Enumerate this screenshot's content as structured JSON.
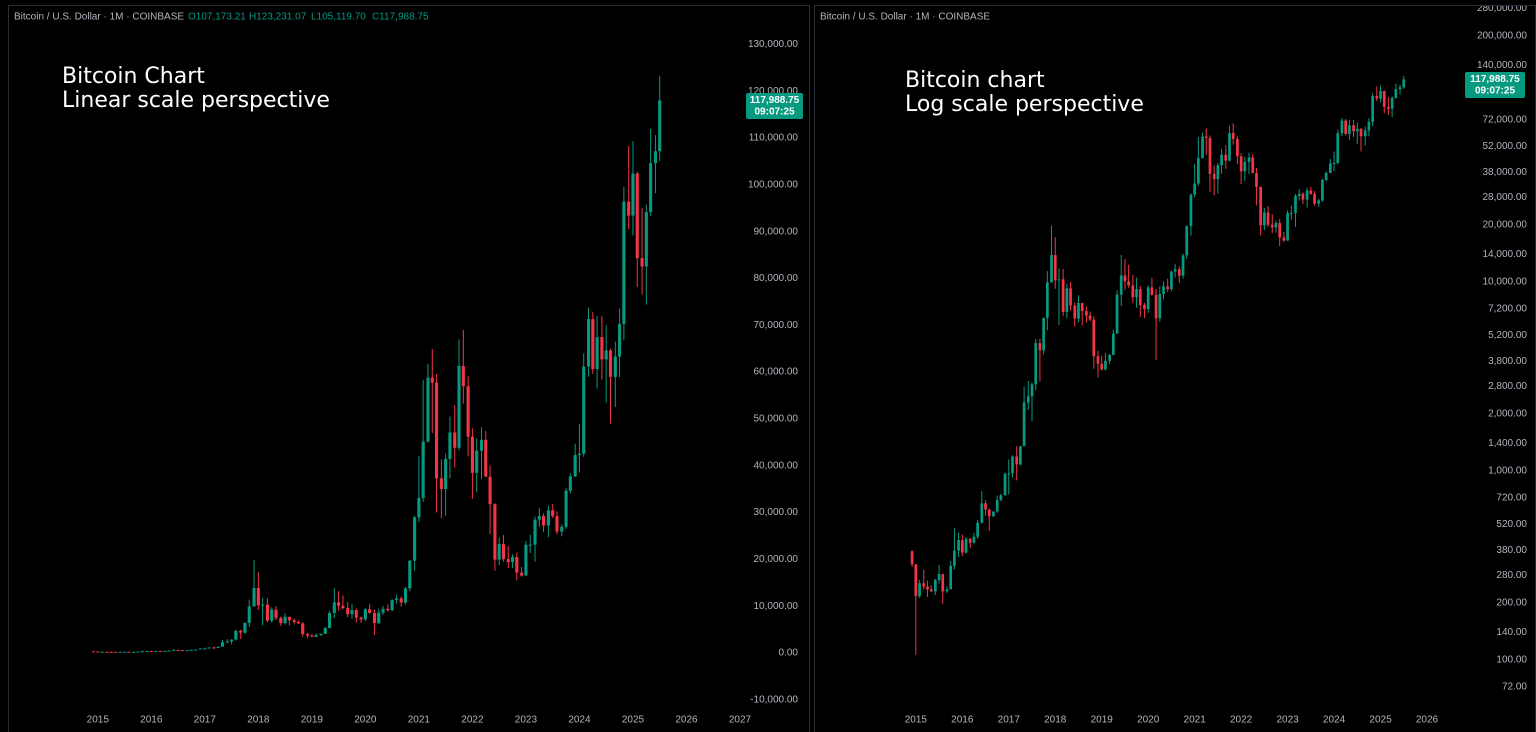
{
  "chart_data": [
    {
      "type": "candlestick",
      "header": "Bitcoin / U.S. Dollar · 1M · COINBASE",
      "ohlc_labels": [
        "O107,173.21",
        "H123,231.07",
        "L105,119.70",
        "C117,988.75"
      ],
      "annotations": [
        "Bitcoin Chart",
        "Linear scale perspective"
      ],
      "last_price_label": "117,988.75",
      "countdown": "09:07:25",
      "up_color": "#089981",
      "down_color": "#f23645",
      "log_scale": false,
      "xlim": [
        2013.36,
        2027.0
      ],
      "xticks": [
        2015,
        2016,
        2017,
        2018,
        2019,
        2020,
        2021,
        2022,
        2023,
        2024,
        2025,
        2026,
        2027
      ],
      "ylim": [
        -12600,
        132000
      ],
      "yticks": [
        {
          "value": 130000,
          "label": "130,000.00"
        },
        {
          "value": 120000,
          "label": "120,000.00"
        },
        {
          "value": 110000,
          "label": "110,000.00"
        },
        {
          "value": 100000,
          "label": "100,000.00"
        },
        {
          "value": 90000,
          "label": "90,000.00"
        },
        {
          "value": 80000,
          "label": "80,000.00"
        },
        {
          "value": 70000,
          "label": "70,000.00"
        },
        {
          "value": 60000,
          "label": "60,000.00"
        },
        {
          "value": 50000,
          "label": "50,000.00"
        },
        {
          "value": 40000,
          "label": "40,000.00"
        },
        {
          "value": 30000,
          "label": "30,000.00"
        },
        {
          "value": 20000,
          "label": "20,000.00"
        },
        {
          "value": 10000,
          "label": "10,000.00"
        },
        {
          "value": 0,
          "label": "0.00"
        },
        {
          "value": -10000,
          "label": "-10,000.00"
        }
      ],
      "x": [
        2014.92,
        2015.0,
        2015.08,
        2015.17,
        2015.25,
        2015.33,
        2015.42,
        2015.5,
        2015.58,
        2015.67,
        2015.75,
        2015.83,
        2015.92,
        2016.0,
        2016.08,
        2016.17,
        2016.25,
        2016.33,
        2016.42,
        2016.5,
        2016.58,
        2016.67,
        2016.75,
        2016.83,
        2016.92,
        2017.0,
        2017.08,
        2017.17,
        2017.25,
        2017.33,
        2017.42,
        2017.5,
        2017.58,
        2017.67,
        2017.75,
        2017.83,
        2017.92,
        2018.0,
        2018.08,
        2018.17,
        2018.25,
        2018.33,
        2018.42,
        2018.5,
        2018.58,
        2018.67,
        2018.75,
        2018.83,
        2018.92,
        2019.0,
        2019.08,
        2019.17,
        2019.25,
        2019.33,
        2019.42,
        2019.5,
        2019.58,
        2019.67,
        2019.75,
        2019.83,
        2019.92,
        2020.0,
        2020.08,
        2020.17,
        2020.25,
        2020.33,
        2020.42,
        2020.5,
        2020.58,
        2020.67,
        2020.75,
        2020.83,
        2020.92,
        2021.0,
        2021.08,
        2021.17,
        2021.25,
        2021.33,
        2021.42,
        2021.5,
        2021.58,
        2021.67,
        2021.75,
        2021.83,
        2021.92,
        2022.0,
        2022.08,
        2022.17,
        2022.25,
        2022.33,
        2022.42,
        2022.5,
        2022.58,
        2022.67,
        2022.75,
        2022.83,
        2022.92,
        2023.0,
        2023.08,
        2023.17,
        2023.25,
        2023.33,
        2023.42,
        2023.5,
        2023.58,
        2023.67,
        2023.75,
        2023.83,
        2023.92,
        2024.0,
        2024.08,
        2024.17,
        2024.25,
        2024.33,
        2024.42,
        2024.5,
        2024.58,
        2024.67,
        2024.75,
        2024.83,
        2024.92,
        2025.0,
        2025.08,
        2025.17,
        2025.25,
        2025.33,
        2025.42,
        2025.5
      ],
      "open": [
        375,
        320,
        217,
        254,
        244,
        236,
        230,
        264,
        284,
        230,
        236,
        314,
        378,
        430,
        369,
        437,
        416,
        448,
        531,
        673,
        624,
        575,
        609,
        701,
        742,
        964,
        970,
        1190,
        1080,
        1350,
        2300,
        2480,
        2870,
        4740,
        4340,
        6450,
        9950,
        13880,
        10200,
        10320,
        6930,
        9240,
        7490,
        6390,
        7730,
        7010,
        6630,
        6320,
        4040,
        3690,
        3440,
        3820,
        4100,
        5320,
        8560,
        10820,
        10080,
        9590,
        8290,
        9150,
        7550,
        7190,
        9350,
        8540,
        6420,
        8630,
        9450,
        9140,
        11340,
        11660,
        10780,
        13800,
        19710,
        28990,
        33140,
        45160,
        58800,
        57750,
        37300,
        35040,
        41460,
        47100,
        43830,
        61320,
        57000,
        46210,
        38480,
        43190,
        45540,
        37640,
        31800,
        19930,
        23300,
        20050,
        19430,
        20490,
        17170,
        16540,
        23130,
        23150,
        28480,
        29250,
        27220,
        30480,
        29230,
        25940,
        26970,
        34650,
        37720,
        42280,
        42580,
        61180,
        71330,
        60640,
        67490,
        62700,
        64640,
        58980,
        63330,
        70260,
        96400,
        93430,
        102410,
        84350,
        82550,
        94170,
        104630,
        107173.21
      ],
      "high": [
        380,
        320,
        265,
        300,
        262,
        248,
        268,
        318,
        285,
        245,
        334,
        500,
        470,
        460,
        445,
        440,
        470,
        550,
        780,
        700,
        630,
        610,
        740,
        755,
        980,
        1150,
        1210,
        1350,
        1350,
        2790,
        2990,
        2930,
        4980,
        5000,
        6470,
        11400,
        19890,
        17250,
        11790,
        11700,
        9780,
        9990,
        7780,
        8500,
        7760,
        7410,
        6970,
        6580,
        4310,
        4070,
        4200,
        4150,
        5600,
        9000,
        13880,
        13200,
        12320,
        10900,
        10540,
        9500,
        7750,
        9580,
        10500,
        9190,
        9460,
        10080,
        10380,
        11450,
        12480,
        12090,
        14100,
        19900,
        29300,
        41990,
        58370,
        61790,
        64900,
        59600,
        41330,
        42600,
        50500,
        52920,
        67000,
        69000,
        59100,
        47990,
        45850,
        48240,
        47450,
        40080,
        31980,
        24670,
        25200,
        22800,
        21100,
        21480,
        18390,
        23960,
        25250,
        29190,
        31000,
        29820,
        31440,
        31820,
        30230,
        27490,
        35200,
        38420,
        44720,
        48970,
        64000,
        73800,
        72800,
        71980,
        72000,
        70000,
        65000,
        66500,
        73600,
        99600,
        108270,
        109350,
        102760,
        95000,
        95760,
        111980,
        110600,
        123231.07
      ],
      "low": [
        310,
        106,
        212,
        236,
        215,
        228,
        220,
        253,
        198,
        226,
        236,
        300,
        350,
        354,
        365,
        390,
        412,
        437,
        526,
        580,
        480,
        570,
        600,
        690,
        740,
        750,
        920,
        890,
        1070,
        1350,
        2100,
        1830,
        2680,
        2970,
        4120,
        5550,
        9900,
        9200,
        5920,
        6600,
        6430,
        7040,
        5780,
        6100,
        5880,
        6100,
        6200,
        3470,
        3120,
        3400,
        3390,
        3670,
        4100,
        5320,
        7440,
        9080,
        9320,
        7710,
        7300,
        6520,
        6430,
        6860,
        8450,
        3850,
        6150,
        8110,
        8830,
        8920,
        10540,
        9880,
        10380,
        13200,
        17570,
        28000,
        32300,
        44950,
        47000,
        30000,
        28800,
        29300,
        37330,
        39600,
        43300,
        53250,
        42000,
        32920,
        34300,
        37160,
        37700,
        25400,
        17580,
        18780,
        19520,
        18120,
        18180,
        15480,
        16260,
        16500,
        21350,
        19550,
        26940,
        25810,
        24750,
        28860,
        25300,
        24920,
        26550,
        34100,
        37630,
        38560,
        41900,
        59000,
        59600,
        56500,
        58400,
        53500,
        49000,
        52550,
        58900,
        66800,
        90500,
        89160,
        78160,
        76550,
        74420,
        93350,
        98200,
        105119.7
      ],
      "close": [
        320,
        217,
        254,
        244,
        236,
        230,
        264,
        284,
        230,
        236,
        314,
        378,
        430,
        369,
        437,
        416,
        448,
        531,
        673,
        624,
        575,
        609,
        701,
        742,
        964,
        970,
        1190,
        1080,
        1350,
        2300,
        2480,
        2870,
        4740,
        4340,
        6450,
        9950,
        13880,
        10200,
        10320,
        6930,
        9240,
        7490,
        6390,
        7730,
        7010,
        6630,
        6320,
        4040,
        3690,
        3440,
        3820,
        4100,
        5320,
        8560,
        10820,
        10080,
        9590,
        8290,
        9150,
        7550,
        7190,
        9350,
        8540,
        6420,
        8630,
        9450,
        9140,
        11340,
        11660,
        10780,
        13800,
        19710,
        28990,
        33140,
        45160,
        58800,
        57750,
        37300,
        35040,
        41460,
        47100,
        43830,
        61320,
        57000,
        46210,
        38480,
        43190,
        45540,
        37640,
        31800,
        19930,
        23300,
        20050,
        19430,
        20490,
        17170,
        16540,
        23130,
        23150,
        28480,
        29250,
        27220,
        30480,
        29230,
        25940,
        26970,
        34650,
        37720,
        42280,
        42580,
        61180,
        71330,
        60640,
        67490,
        62700,
        64640,
        58980,
        63330,
        70260,
        96400,
        93430,
        102410,
        84350,
        82550,
        94170,
        104630,
        107170,
        117988.75
      ]
    },
    {
      "type": "candlestick",
      "header": "Bitcoin / U.S. Dollar · 1M · COINBASE",
      "annotations": [
        "Bitcoin chart",
        "Log scale perspective"
      ],
      "last_price_label": "117,988.75",
      "countdown": "09:07:25",
      "up_color": "#089981",
      "down_color": "#f23645",
      "log_scale": true,
      "xlim": [
        2012.83,
        2026.28
      ],
      "xticks": [
        2015,
        2016,
        2017,
        2018,
        2019,
        2020,
        2021,
        2022,
        2023,
        2024,
        2025,
        2026
      ],
      "ylim": [
        51,
        292000
      ],
      "yticks": [
        {
          "value": 280000,
          "label": "280,000.00"
        },
        {
          "value": 200000,
          "label": "200,000.00"
        },
        {
          "value": 140000,
          "label": "140,000.00"
        },
        {
          "value": 72000,
          "label": "72,000.00"
        },
        {
          "value": 52000,
          "label": "52,000.00"
        },
        {
          "value": 38000,
          "label": "38,000.00"
        },
        {
          "value": 28000,
          "label": "28,000.00"
        },
        {
          "value": 20000,
          "label": "20,000.00"
        },
        {
          "value": 14000,
          "label": "14,000.00"
        },
        {
          "value": 10000,
          "label": "10,000.00"
        },
        {
          "value": 7200,
          "label": "7,200.00"
        },
        {
          "value": 5200,
          "label": "5,200.00"
        },
        {
          "value": 3800,
          "label": "3,800.00"
        },
        {
          "value": 2800,
          "label": "2,800.00"
        },
        {
          "value": 2000,
          "label": "2,000.00"
        },
        {
          "value": 1400,
          "label": "1,400.00"
        },
        {
          "value": 1000,
          "label": "1,000.00"
        },
        {
          "value": 720,
          "label": "720.00"
        },
        {
          "value": 520,
          "label": "520.00"
        },
        {
          "value": 380,
          "label": "380.00"
        },
        {
          "value": 280,
          "label": "280.00"
        },
        {
          "value": 200,
          "label": "200.00"
        },
        {
          "value": 140,
          "label": "140.00"
        },
        {
          "value": 100,
          "label": "100.00"
        },
        {
          "value": 72,
          "label": "72.00"
        }
      ]
    }
  ]
}
